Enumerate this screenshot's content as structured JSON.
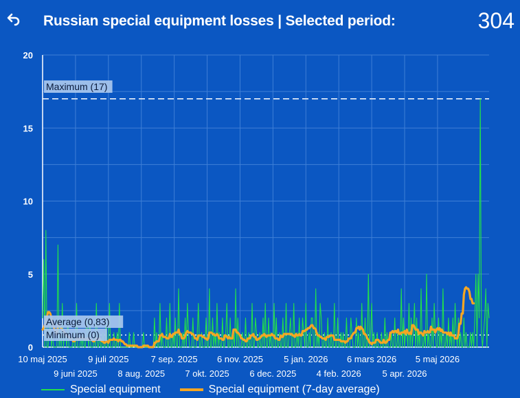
{
  "header": {
    "back_icon": "undo-arrow-icon",
    "title": "Russian special equipment losses | Selected period:",
    "total": "304"
  },
  "colors": {
    "background": "#0b57c2",
    "daily_line": "#22e04a",
    "average_line": "#f5a623",
    "reference_line": "#ffffff",
    "label_box": "#a9c7ee"
  },
  "chart_data": {
    "type": "line",
    "title": "",
    "xlabel": "",
    "ylabel": "",
    "ylim": [
      0,
      20
    ],
    "yticks": [
      "0",
      "5",
      "10",
      "15",
      "20"
    ],
    "grid": true,
    "x_tick_labels_upper": [
      "10 maj 2025",
      "9 juli 2025",
      "7 sep. 2025",
      "6 nov. 2025",
      "5 jan. 2026",
      "6 mars 2026",
      "5 maj 2026"
    ],
    "x_tick_labels_lower": [
      "9 juni 2025",
      "8 aug. 2025",
      "7 okt. 2025",
      "6 dec. 2025",
      "4 feb. 2026",
      "5 apr. 2026"
    ],
    "start_date": "2025-05-10",
    "reference_lines": [
      {
        "label": "Maximum (17)",
        "value": 17
      },
      {
        "label": "Average (0,83)",
        "value": 0.83
      },
      {
        "label": "Minimum (0)",
        "value": 0
      }
    ],
    "series": [
      {
        "name": "Special equipment",
        "values": [
          2,
          6,
          0,
          8,
          0,
          0,
          1,
          2,
          0,
          1,
          0,
          0,
          0,
          0,
          7,
          0,
          1,
          0,
          3,
          0,
          1,
          1,
          0,
          2,
          0,
          0,
          0,
          0,
          1,
          0,
          0,
          3,
          0,
          0,
          0,
          1,
          0,
          1,
          0,
          0,
          2,
          1,
          0,
          2,
          0,
          0,
          0,
          1,
          0,
          3,
          0,
          0,
          1,
          0,
          0,
          1,
          0,
          0,
          2,
          0,
          0,
          3,
          0,
          0,
          0,
          1,
          0,
          0,
          1,
          0,
          3,
          0,
          0,
          0,
          0,
          0,
          0,
          0,
          0,
          1,
          0,
          0,
          0,
          1,
          0,
          0,
          0,
          0,
          0,
          0,
          0,
          0,
          1,
          0,
          0,
          0,
          0,
          0,
          0,
          0,
          0,
          0,
          2,
          0,
          1,
          0,
          0,
          3,
          0,
          1,
          0,
          0,
          0,
          2,
          0,
          0,
          3,
          0,
          0,
          1,
          0,
          2,
          0,
          0,
          4,
          0,
          0,
          0,
          1,
          0,
          2,
          0,
          3,
          1,
          0,
          0,
          0,
          2,
          0,
          0,
          0,
          1,
          3,
          0,
          0,
          1,
          0,
          0,
          0,
          2,
          0,
          0,
          4,
          0,
          0,
          2,
          0,
          1,
          0,
          3,
          0,
          1,
          0,
          0,
          2,
          0,
          0,
          1,
          3,
          0,
          0,
          2,
          0,
          0,
          1,
          0,
          4,
          0,
          2,
          0,
          0,
          0,
          1,
          0,
          0,
          2,
          0,
          0,
          1,
          0,
          0,
          3,
          0,
          0,
          2,
          1,
          0,
          0,
          1,
          0,
          0,
          2,
          0,
          3,
          0,
          0,
          2,
          0,
          1,
          0,
          0,
          3,
          0,
          2,
          0,
          0,
          1,
          0,
          0,
          2,
          0,
          0,
          3,
          0,
          0,
          1,
          2,
          0,
          0,
          3,
          0,
          0,
          1,
          0,
          2,
          0,
          0,
          2,
          1,
          0,
          3,
          0,
          0,
          1,
          0,
          2,
          2,
          0,
          0,
          4,
          0,
          1,
          0,
          3,
          2,
          0,
          0,
          1,
          0,
          0,
          2,
          0,
          0,
          1,
          0,
          0,
          3,
          0,
          0,
          2,
          0,
          0,
          1,
          0,
          1,
          0,
          0,
          2,
          0,
          0,
          0,
          2,
          1,
          0,
          0,
          0,
          2,
          0,
          1,
          0,
          0,
          3,
          0,
          0,
          2,
          0,
          0,
          5,
          0,
          1,
          3,
          0,
          1,
          0,
          0,
          1,
          0,
          0,
          0,
          1,
          0,
          0,
          2,
          0,
          1,
          0,
          0,
          0,
          1,
          0,
          0,
          2,
          0,
          0,
          1,
          0,
          0,
          4,
          0,
          2,
          0,
          1,
          1,
          0,
          3,
          0,
          2,
          0,
          1,
          3,
          0,
          2,
          0,
          1,
          0,
          4,
          0,
          0,
          1,
          0,
          5,
          0,
          1,
          0,
          0,
          2,
          0,
          3,
          1,
          0,
          0,
          2,
          0,
          1,
          0,
          4,
          0,
          0,
          1,
          0,
          2,
          0,
          1,
          0,
          2,
          0,
          3,
          1,
          0,
          2,
          0,
          1,
          0,
          0,
          2,
          0,
          1,
          0,
          0,
          0,
          1,
          0,
          1,
          0,
          2,
          5,
          0,
          5,
          2,
          17,
          1,
          0,
          1,
          2,
          4,
          0,
          3,
          2
        ],
        "color": "#22e04a"
      },
      {
        "name": "Special equipment (7-day average)",
        "values": [
          1.2,
          1.3,
          1.5,
          1.8,
          2.1,
          2.4,
          2.4,
          2.3,
          2.0,
          1.7,
          1.4,
          1.2,
          1.0,
          0.9,
          1.5,
          1.6,
          1.4,
          1.3,
          1.2,
          1.1,
          1.0,
          0.9,
          0.8,
          0.7,
          0.7,
          0.6,
          0.6,
          0.5,
          0.4,
          0.4,
          0.5,
          0.6,
          0.6,
          0.5,
          0.6,
          0.7,
          0.6,
          0.6,
          0.6,
          0.5,
          0.5,
          0.6,
          0.5,
          0.6,
          0.5,
          0.5,
          0.4,
          0.4,
          0.5,
          0.6,
          0.5,
          0.5,
          0.6,
          0.5,
          0.4,
          0.4,
          0.3,
          0.3,
          0.4,
          0.4,
          0.3,
          0.5,
          0.5,
          0.5,
          0.5,
          0.6,
          0.5,
          0.5,
          0.5,
          0.4,
          0.5,
          0.5,
          0.4,
          0.4,
          0.3,
          0.2,
          0.2,
          0.1,
          0.1,
          0.1,
          0.1,
          0.1,
          0.1,
          0.1,
          0.1,
          0.1,
          0.1,
          0.0,
          0.0,
          0.0,
          0.0,
          0.0,
          0.1,
          0.1,
          0.1,
          0.1,
          0.1,
          0.0,
          0.0,
          0.0,
          0.0,
          0.0,
          0.3,
          0.3,
          0.4,
          0.4,
          0.4,
          0.8,
          0.8,
          0.9,
          0.7,
          0.7,
          0.7,
          0.6,
          0.6,
          0.6,
          0.9,
          0.7,
          0.7,
          0.9,
          0.9,
          1.0,
          1.0,
          1.0,
          1.2,
          0.9,
          0.9,
          0.6,
          0.6,
          0.6,
          0.8,
          1.0,
          1.1,
          1.0,
          1.0,
          1.0,
          0.9,
          0.9,
          0.8,
          0.6,
          0.6,
          0.5,
          0.8,
          0.8,
          0.8,
          0.8,
          0.7,
          0.7,
          0.6,
          0.6,
          0.5,
          0.6,
          1.0,
          1.0,
          1.0,
          0.9,
          0.9,
          0.8,
          0.8,
          0.9,
          0.8,
          0.6,
          0.6,
          0.6,
          0.5,
          0.5,
          0.8,
          0.8,
          0.7,
          0.6,
          0.7,
          0.6,
          0.6,
          0.6,
          1.2,
          1.2,
          1.2,
          1.0,
          1.0,
          0.9,
          0.8,
          0.6,
          0.6,
          0.5,
          0.5,
          0.4,
          0.4,
          0.6,
          0.6,
          0.6,
          0.8,
          0.8,
          0.9,
          0.7,
          0.7,
          0.5,
          0.5,
          0.6,
          0.6,
          0.7,
          0.8,
          0.8,
          0.9,
          0.8,
          0.7,
          0.8,
          0.8,
          0.8,
          0.8,
          0.9,
          0.8,
          0.8,
          0.6,
          0.6,
          0.6,
          0.5,
          0.5,
          0.8,
          0.7,
          0.7,
          0.9,
          0.9,
          0.9,
          0.9,
          0.9,
          0.9,
          0.9,
          0.9,
          0.8,
          0.8,
          0.7,
          0.9,
          0.8,
          0.8,
          0.9,
          0.8,
          0.8,
          1.1,
          1.1,
          1.1,
          1.2,
          1.2,
          1.3,
          1.3,
          1.4,
          1.5,
          1.5,
          1.3,
          1.3,
          1.2,
          0.9,
          0.8,
          0.8,
          0.7,
          0.7,
          0.6,
          0.6,
          0.6,
          0.5,
          0.7,
          0.7,
          0.7,
          0.8,
          0.8,
          0.8,
          0.8,
          0.5,
          0.5,
          0.5,
          0.5,
          0.5,
          0.5,
          0.4,
          0.4,
          0.4,
          0.4,
          0.3,
          0.4,
          0.4,
          0.6,
          0.6,
          0.6,
          0.8,
          0.9,
          1.0,
          1.0,
          1.3,
          1.3,
          1.4,
          1.2,
          1.4,
          1.3,
          1.2,
          0.9,
          0.9,
          0.8,
          0.6,
          0.5,
          0.3,
          0.3,
          0.2,
          0.3,
          0.3,
          0.3,
          0.5,
          0.5,
          0.5,
          0.4,
          0.3,
          0.3,
          0.3,
          0.5,
          0.3,
          0.3,
          0.4,
          0.5,
          0.5,
          1.0,
          1.0,
          1.1,
          1.0,
          1.1,
          1.1,
          1.0,
          1.2,
          0.9,
          0.9,
          1.0,
          1.0,
          1.0,
          1.1,
          0.9,
          1.2,
          1.0,
          0.9,
          1.0,
          0.9,
          1.5,
          1.5,
          1.4,
          1.2,
          1.2,
          1.2,
          0.9,
          1.0,
          1.0,
          0.9,
          0.8,
          1.1,
          1.0,
          1.0,
          1.1,
          1.0,
          1.0,
          1.4,
          1.2,
          1.2,
          1.2,
          1.0,
          1.2,
          1.3,
          1.2,
          1.3,
          1.1,
          1.2,
          1.0,
          1.0,
          1.0,
          1.0,
          0.9,
          1.0,
          0.8,
          1.0,
          0.8,
          0.8,
          0.8,
          0.6,
          0.6,
          0.6,
          0.9,
          1.6,
          1.6,
          2.3,
          2.3,
          3.6,
          4.0,
          4.1,
          4.0,
          4.0,
          3.8,
          3.3,
          3.3,
          3.0,
          3.0
        ],
        "color": "#f5a623"
      }
    ]
  }
}
